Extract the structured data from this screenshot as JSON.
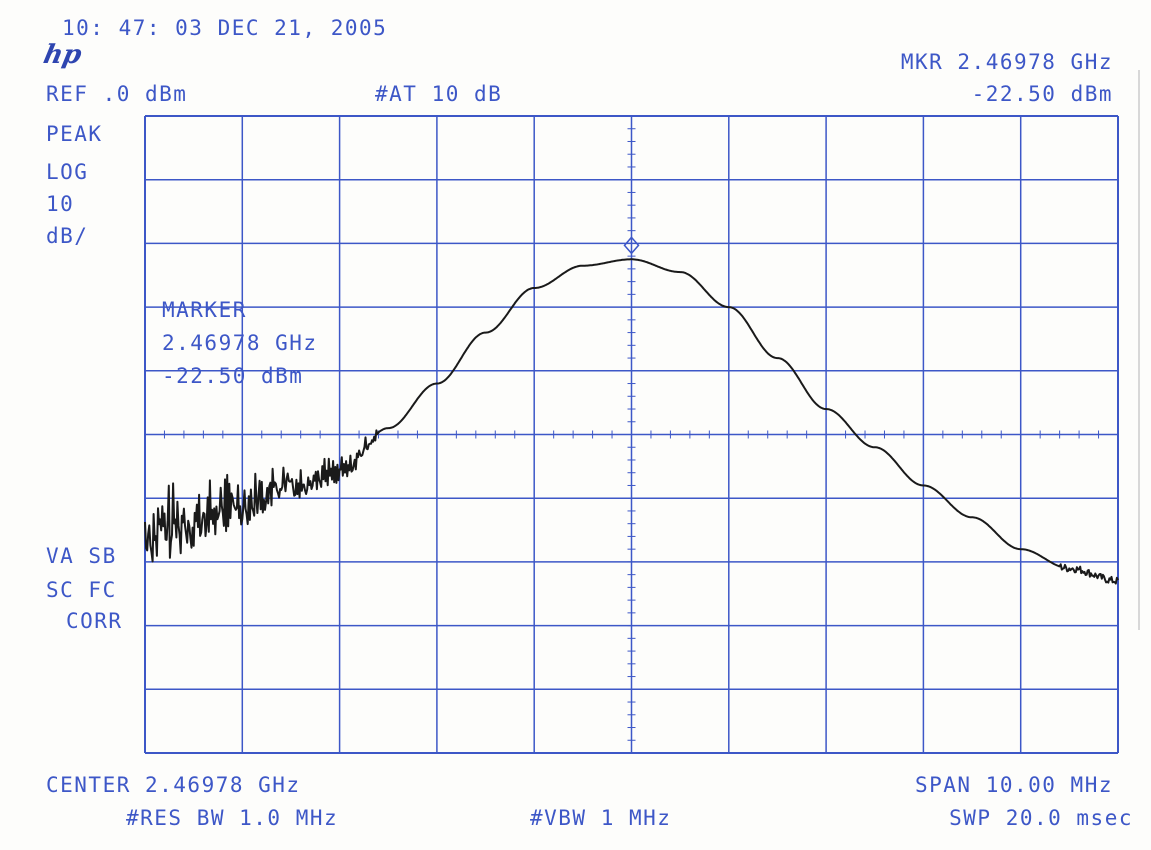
{
  "header": {
    "timestamp": "10: 47: 03 DEC 21, 2005",
    "logo": "hp",
    "ref_level": "REF .0 dBm",
    "attenuation": "#AT 10 dB",
    "marker_freq": "MKR 2.46978 GHz",
    "marker_level": "-22.50 dBm"
  },
  "left_panel": {
    "detector": "PEAK",
    "scale_type": "LOG",
    "scale_value": "10",
    "scale_unit": "dB/",
    "status_line1": "VA SB",
    "status_line2": "SC FC",
    "status_line3": "CORR"
  },
  "marker_box": {
    "title": "MARKER",
    "freq": "2.46978 GHz",
    "level": "-22.50 dBm"
  },
  "footer": {
    "center": "CENTER 2.46978 GHz",
    "span": "SPAN 10.00 MHz",
    "res_bw": "#RES BW 1.0 MHz",
    "vbw": "#VBW 1 MHz",
    "sweep": "SWP 20.0 msec"
  },
  "colors": {
    "grid": "#3d57c7",
    "trace": "#1a1a1a",
    "text": "#3d57c7"
  },
  "chart_data": {
    "type": "line",
    "title": "",
    "xlabel": "",
    "ylabel": "",
    "x_unit": "GHz",
    "y_unit": "dBm",
    "xlim": [
      2.46478,
      2.47478
    ],
    "ylim": [
      -100,
      0
    ],
    "grid": true,
    "x_divisions": 10,
    "y_divisions": 10,
    "marker": {
      "x": 2.46978,
      "y": -22.5
    },
    "series": [
      {
        "x": [
          2.46478,
          2.46528,
          2.46578,
          2.46628,
          2.46678,
          2.46728,
          2.46778,
          2.46828,
          2.46878,
          2.46928,
          2.46978,
          2.47028,
          2.47078,
          2.47128,
          2.47178,
          2.47228,
          2.47278,
          2.47328,
          2.47378,
          2.47428,
          2.47478
        ],
        "y": [
          -66,
          -64,
          -61,
          -58,
          -56,
          -49,
          -42,
          -34,
          -27,
          -23.5,
          -22.5,
          -24.5,
          -30,
          -38,
          -46,
          -52,
          -58,
          -63,
          -68,
          -71,
          -73
        ]
      }
    ]
  }
}
